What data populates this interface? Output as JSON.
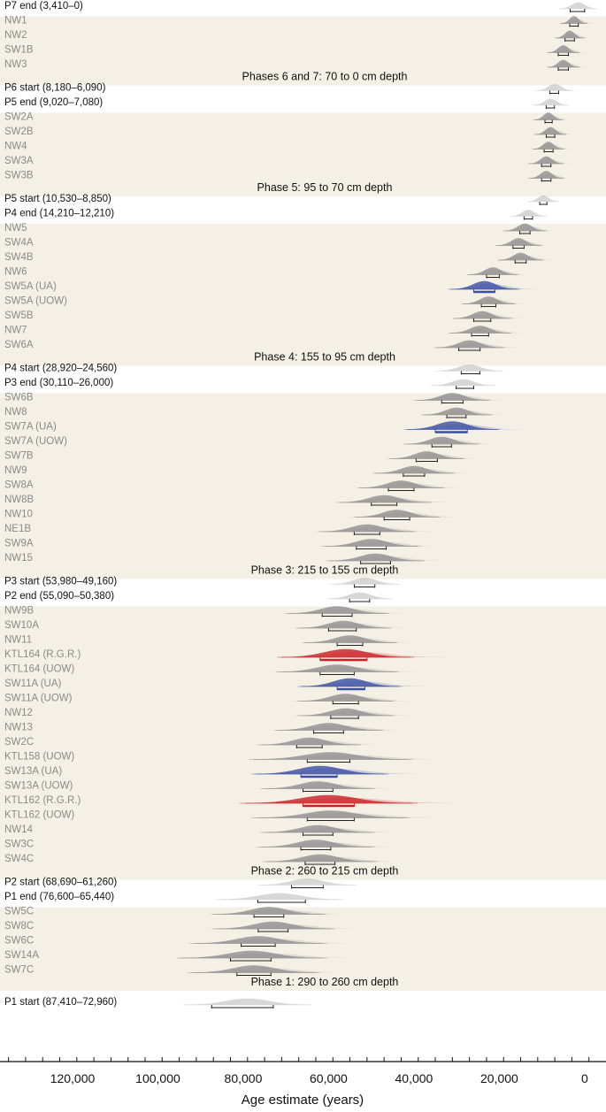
{
  "chart_data": {
    "type": "ordered-distribution",
    "title": "",
    "xlabel": "Age estimate (years)",
    "xlim": [
      137000,
      -5000
    ],
    "ticks": [
      {
        "value": 120000,
        "label": "120,000"
      },
      {
        "value": 100000,
        "label": "100,000"
      },
      {
        "value": 80000,
        "label": "80,000"
      },
      {
        "value": 60000,
        "label": "60,000"
      },
      {
        "value": 40000,
        "label": "40,000"
      },
      {
        "value": 20000,
        "label": "20,000"
      },
      {
        "value": 0,
        "label": "0"
      }
    ],
    "colors": {
      "band": "#f5f0e6",
      "grey": "#909090",
      "blue": "#3a4ea6",
      "red": "#cc1f25",
      "boundary_text": "#111111",
      "sample_text": "#8a8a8a"
    },
    "phases": [
      {
        "label": "Phases 6 and 7: 70 to 0 cm depth",
        "boundaries_before": [
          {
            "label": "P7 end (3,410–0)",
            "center": 1500,
            "spread": 1500,
            "range": [
              3410,
              0
            ]
          }
        ],
        "samples": [
          {
            "label": "NW1",
            "center": 2500,
            "spread": 1000,
            "range": [
              3500,
              1500
            ]
          },
          {
            "label": "NW2",
            "center": 3500,
            "spread": 1100,
            "range": [
              4600,
              2400
            ]
          },
          {
            "label": "SW1B",
            "center": 5000,
            "spread": 1200,
            "range": [
              6200,
              3800
            ]
          },
          {
            "label": "NW3",
            "center": 5000,
            "spread": 1200,
            "range": [
              6200,
              3800
            ]
          }
        ]
      },
      {
        "label": "Phase 5: 95 to 70 cm depth",
        "boundaries_before": [
          {
            "label": "P6 start (8,180–6,090)",
            "center": 7000,
            "spread": 1500,
            "range": [
              8180,
              6090
            ]
          },
          {
            "label": "P5 end (9,020–7,080)",
            "center": 8000,
            "spread": 1400,
            "range": [
              9020,
              7080
            ]
          }
        ],
        "samples": [
          {
            "label": "SW2A",
            "center": 8500,
            "spread": 1100,
            "range": [
              9300,
              7600
            ]
          },
          {
            "label": "SW2B",
            "center": 8000,
            "spread": 1200,
            "range": [
              9000,
              7000
            ]
          },
          {
            "label": "NW4",
            "center": 8500,
            "spread": 1200,
            "range": [
              9500,
              7400
            ]
          },
          {
            "label": "SW3A",
            "center": 9000,
            "spread": 1300,
            "range": [
              10100,
              7900
            ]
          },
          {
            "label": "SW3B",
            "center": 9000,
            "spread": 1300,
            "range": [
              10100,
              7900
            ]
          }
        ]
      },
      {
        "label": "Phase 4: 155 to 95 cm depth",
        "boundaries_before": [
          {
            "label": "P5 start (10,530–8,850)",
            "center": 9700,
            "spread": 1200,
            "range": [
              10530,
              8850
            ]
          },
          {
            "label": "P4 end (14,210–12,210)",
            "center": 13200,
            "spread": 1400,
            "range": [
              14210,
              12210
            ]
          }
        ],
        "samples": [
          {
            "label": "NW5",
            "center": 14000,
            "spread": 1600,
            "range": [
              15200,
              12800
            ]
          },
          {
            "label": "SW4A",
            "center": 15500,
            "spread": 1700,
            "range": [
              16800,
              14200
            ]
          },
          {
            "label": "SW4B",
            "center": 15000,
            "spread": 1700,
            "range": [
              16300,
              13700
            ]
          },
          {
            "label": "NW6",
            "center": 21500,
            "spread": 1900,
            "range": [
              23000,
              20000
            ]
          },
          {
            "label": "SW5A (UA)",
            "center": 23500,
            "spread": 2600,
            "range": [
              26000,
              21000
            ],
            "color": "blue"
          },
          {
            "label": "SW5A (UOW)",
            "center": 22500,
            "spread": 2000,
            "range": [
              24200,
              20800
            ]
          },
          {
            "label": "SW5B",
            "center": 24000,
            "spread": 2200,
            "range": [
              26000,
              22000
            ]
          },
          {
            "label": "NW7",
            "center": 24500,
            "spread": 2300,
            "range": [
              26500,
              22500
            ]
          },
          {
            "label": "SW6A",
            "center": 27000,
            "spread": 2600,
            "range": [
              29500,
              24500
            ]
          }
        ]
      },
      {
        "label": "Phase 3: 215 to 155 cm depth",
        "boundaries_before": [
          {
            "label": "P4 start (28,920–24,560)",
            "center": 27000,
            "spread": 2600,
            "range": [
              28920,
              24560
            ]
          },
          {
            "label": "P3 end (30,110–26,000)",
            "center": 28500,
            "spread": 2500,
            "range": [
              30110,
              26000
            ]
          }
        ],
        "samples": [
          {
            "label": "SW6B",
            "center": 31000,
            "spread": 2800,
            "range": [
              33500,
              28500
            ]
          },
          {
            "label": "NW8",
            "center": 30000,
            "spread": 2600,
            "range": [
              32300,
              27800
            ]
          },
          {
            "label": "SW7A (UA)",
            "center": 31000,
            "spread": 3500,
            "range": [
              35000,
              27500
            ],
            "color": "blue"
          },
          {
            "label": "SW7A (UOW)",
            "center": 33500,
            "spread": 2800,
            "range": [
              35800,
              31200
            ]
          },
          {
            "label": "SW7B",
            "center": 37000,
            "spread": 2800,
            "range": [
              39500,
              34500
            ]
          },
          {
            "label": "NW9",
            "center": 40000,
            "spread": 3000,
            "range": [
              42500,
              37500
            ]
          },
          {
            "label": "SW8A",
            "center": 43000,
            "spread": 3200,
            "range": [
              46000,
              40000
            ]
          },
          {
            "label": "NW8B",
            "center": 47000,
            "spread": 3500,
            "range": [
              50000,
              44000
            ]
          },
          {
            "label": "NW10",
            "center": 44000,
            "spread": 3200,
            "range": [
              47000,
              41000
            ]
          },
          {
            "label": "NE1B",
            "center": 51000,
            "spread": 3600,
            "range": [
              54000,
              48000
            ]
          },
          {
            "label": "SW9A",
            "center": 50000,
            "spread": 3600,
            "range": [
              53500,
              46500
            ]
          },
          {
            "label": "NW15",
            "center": 49000,
            "spread": 3600,
            "range": [
              52500,
              45500
            ]
          }
        ]
      },
      {
        "label": "Phase 2: 260 to 215 cm depth",
        "boundaries_before": [
          {
            "label": "P3 start (53,980–49,160)",
            "center": 51500,
            "spread": 2700,
            "range": [
              53980,
              49160
            ]
          },
          {
            "label": "P2 end (55,090–50,380)",
            "center": 52700,
            "spread": 2600,
            "range": [
              55090,
              50380
            ]
          }
        ],
        "samples": [
          {
            "label": "NW9B",
            "center": 58000,
            "spread": 3800,
            "range": [
              61500,
              54500
            ]
          },
          {
            "label": "SW10A",
            "center": 56500,
            "spread": 3500,
            "range": [
              60000,
              53500
            ]
          },
          {
            "label": "NW11",
            "center": 55000,
            "spread": 3500,
            "range": [
              58000,
              52000
            ]
          },
          {
            "label": "KTL164 (R.G.R.)",
            "center": 56000,
            "spread": 5000,
            "range": [
              62000,
              51000
            ],
            "color": "red"
          },
          {
            "label": "KTL164 (UOW)",
            "center": 58000,
            "spread": 4500,
            "range": [
              62000,
              54000
            ]
          },
          {
            "label": "SW11A (UA)",
            "center": 55000,
            "spread": 3800,
            "range": [
              58000,
              51500
            ],
            "color": "blue"
          },
          {
            "label": "SW11A (UOW)",
            "center": 56000,
            "spread": 3600,
            "range": [
              59000,
              53000
            ]
          },
          {
            "label": "NW12",
            "center": 56000,
            "spread": 3600,
            "range": [
              59500,
              53000
            ]
          },
          {
            "label": "NW13",
            "center": 60000,
            "spread": 4000,
            "range": [
              63500,
              56500
            ]
          },
          {
            "label": "SW2C",
            "center": 64500,
            "spread": 3800,
            "range": [
              67500,
              61500
            ]
          },
          {
            "label": "KTL158 (UOW)",
            "center": 59500,
            "spread": 6000,
            "range": [
              65000,
              55000
            ]
          },
          {
            "label": "SW13A (UA)",
            "center": 62000,
            "spread": 5000,
            "range": [
              66500,
              58000
            ],
            "color": "blue"
          },
          {
            "label": "SW13A (UOW)",
            "center": 62500,
            "spread": 4200,
            "range": [
              66000,
              59000
            ]
          },
          {
            "label": "KTL162 (R.G.R.)",
            "center": 60000,
            "spread": 6500,
            "range": [
              66000,
              54000
            ],
            "color": "red"
          },
          {
            "label": "KTL162 (UOW)",
            "center": 59500,
            "spread": 5800,
            "range": [
              65000,
              54000
            ]
          },
          {
            "label": "NW14",
            "center": 62500,
            "spread": 4200,
            "range": [
              66000,
              59000
            ]
          },
          {
            "label": "SW3C",
            "center": 63000,
            "spread": 4300,
            "range": [
              66500,
              59500
            ]
          },
          {
            "label": "SW4C",
            "center": 62000,
            "spread": 4200,
            "range": [
              65500,
              58500
            ]
          }
        ]
      },
      {
        "label": "Phase 1: 290 to 260 cm depth",
        "boundaries_before": [
          {
            "label": "P2 start (68,690–61,260)",
            "center": 65000,
            "spread": 3800,
            "range": [
              68690,
              61260
            ]
          },
          {
            "label": "P1 end (76,600–65,440)",
            "center": 71500,
            "spread": 5000,
            "range": [
              76600,
              65440
            ]
          }
        ],
        "samples": [
          {
            "label": "SW5C",
            "center": 74000,
            "spread": 4200,
            "range": [
              77500,
              70500
            ]
          },
          {
            "label": "SW8C",
            "center": 73000,
            "spread": 4500,
            "range": [
              76500,
              69500
            ]
          },
          {
            "label": "SW6C",
            "center": 76500,
            "spread": 5000,
            "range": [
              80500,
              72500
            ]
          },
          {
            "label": "SW14A",
            "center": 78000,
            "spread": 5500,
            "range": [
              83000,
              73500
            ]
          },
          {
            "label": "SW7C",
            "center": 77500,
            "spread": 4800,
            "range": [
              81500,
              73500
            ]
          }
        ]
      }
    ],
    "final_boundaries": [
      {
        "label": "P1 start (87,410–72,960)",
        "center": 79000,
        "spread": 5000,
        "range": [
          87410,
          72960
        ]
      }
    ]
  }
}
